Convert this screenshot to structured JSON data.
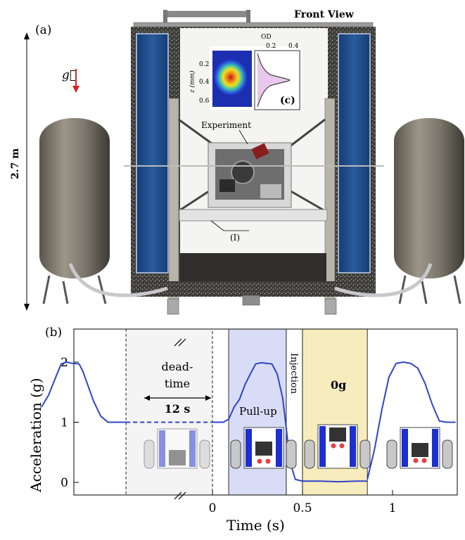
{
  "figure": {
    "panel_a_label": "(a)",
    "panel_b_label": "(b)",
    "front_view_label": "Front View",
    "height_label": "2.7 m",
    "gravity_symbol": "g⃗",
    "experiment_label": "Experiment",
    "platform_label": "(I)",
    "inset": {
      "label": "(c)",
      "od_title": "OD",
      "od_ticks": [
        "0.2",
        "0.4"
      ],
      "z_label": "z (mm)",
      "z_ticks": [
        "0.2",
        "0.4",
        "0.6"
      ]
    }
  },
  "colors": {
    "trace": "#2f44c8",
    "pullup_band": "#d9dcf6",
    "zero_g_band": "#f6ecbd",
    "deadtime_band": "#f4f4f4",
    "gravity_arrow": "#e02020",
    "cabinet_panel": "#1f4f8f"
  },
  "chart_data": {
    "type": "line",
    "xlabel": "Time (s)",
    "ylabel": "Acceleration (g)",
    "xticks": [
      "0",
      "0.5",
      "1"
    ],
    "yticks": [
      "0",
      "1",
      "2"
    ],
    "ylim": [
      -0.2,
      2.2
    ],
    "axis_break": "x",
    "grid": false,
    "annotations": {
      "deadtime": "dead-\ntime",
      "deadtime_duration": "12 s",
      "pullup": "Pull-up",
      "injection": "Injection",
      "zero_g": "0g"
    },
    "series": [
      {
        "x": [
          -0.95,
          -0.91,
          -0.87,
          -0.84,
          -0.81,
          -0.78,
          -0.74,
          -0.72,
          -0.69,
          -0.66,
          -0.62,
          -0.58,
          -0.54,
          -0.5,
          -0.48
        ],
        "y": [
          1.25,
          1.45,
          1.75,
          1.97,
          2.0,
          1.98,
          1.97,
          1.85,
          1.6,
          1.35,
          1.1,
          1.0,
          1.0,
          1.0,
          1.0
        ],
        "style": "solid"
      },
      {
        "x": [
          -0.48,
          0.0
        ],
        "y": [
          1.0,
          1.0
        ],
        "style": "dashed"
      },
      {
        "x": [
          0.0,
          0.06,
          0.09,
          0.12,
          0.15,
          0.18,
          0.21,
          0.24,
          0.27,
          0.3,
          0.33,
          0.36,
          0.39,
          0.41,
          0.43,
          0.46,
          0.5,
          0.6,
          0.7,
          0.8,
          0.86
        ],
        "y": [
          1.0,
          1.0,
          1.05,
          1.25,
          1.38,
          1.62,
          1.8,
          1.97,
          1.99,
          1.98,
          1.97,
          1.8,
          1.4,
          0.9,
          0.35,
          0.05,
          0.02,
          0.02,
          0.01,
          0.02,
          0.02
        ],
        "style": "solid"
      },
      {
        "x": [
          0.86,
          0.9,
          0.94,
          0.98,
          1.02,
          1.06,
          1.1,
          1.14,
          1.18,
          1.22,
          1.26,
          1.3,
          1.35
        ],
        "y": [
          0.05,
          0.55,
          1.2,
          1.75,
          1.98,
          2.0,
          1.98,
          1.9,
          1.65,
          1.3,
          1.02,
          1.0,
          1.0
        ],
        "style": "solid"
      }
    ],
    "bands": [
      {
        "label": "deadtime",
        "x": [
          -0.48,
          0.0
        ]
      },
      {
        "label": "pull-up",
        "x": [
          0.09,
          0.41
        ]
      },
      {
        "label": "injection",
        "x": [
          0.41,
          0.5
        ]
      },
      {
        "label": "0g",
        "x": [
          0.5,
          0.86
        ]
      }
    ]
  }
}
